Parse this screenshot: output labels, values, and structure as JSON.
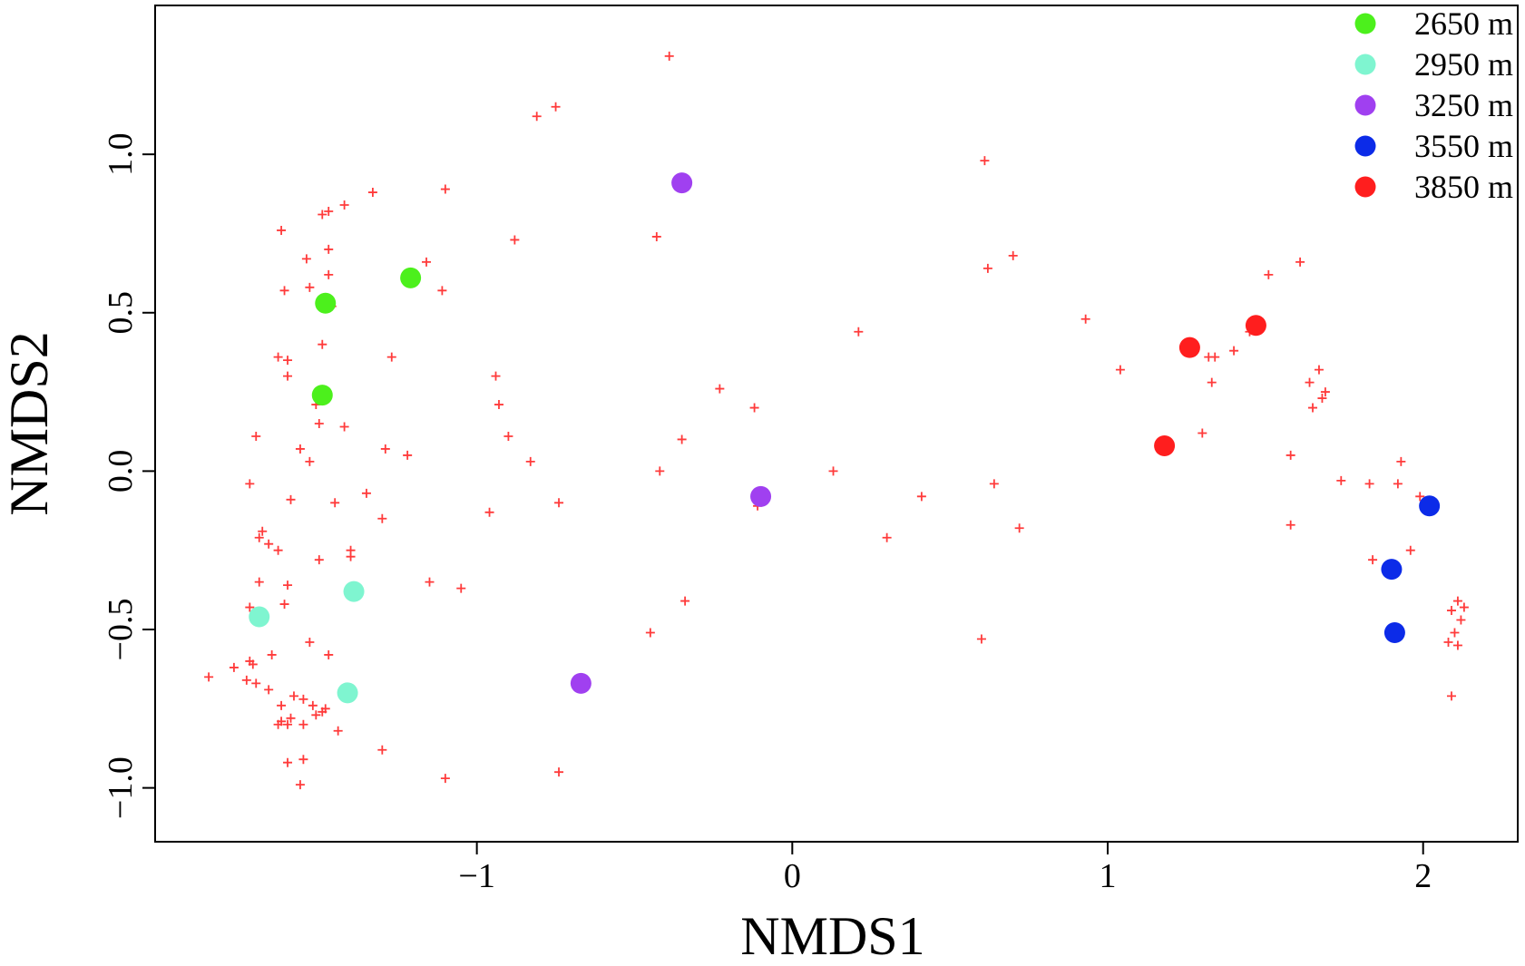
{
  "chart_data": {
    "type": "scatter",
    "title": "",
    "xlabel": "NMDS1",
    "ylabel": "NMDS2",
    "xlim": [
      -2.02,
      2.3
    ],
    "ylim": [
      -1.17,
      1.47
    ],
    "xticks": [
      -1,
      0,
      1,
      2
    ],
    "xtick_labels": [
      "−1",
      "0",
      "1",
      "2"
    ],
    "yticks": [
      -1.0,
      -0.5,
      0.0,
      0.5,
      1.0
    ],
    "ytick_labels": [
      "−1.0",
      "−0.5",
      "0.0",
      "0.5",
      "1.0"
    ],
    "grid": false,
    "legend_position": "top-right",
    "species": {
      "marker": "cross",
      "color": "#ff3b3b",
      "points": [
        [
          -0.39,
          1.31
        ],
        [
          -0.75,
          1.15
        ],
        [
          -0.81,
          1.12
        ],
        [
          -1.33,
          0.88
        ],
        [
          -1.1,
          0.89
        ],
        [
          -1.42,
          0.84
        ],
        [
          -1.49,
          0.81
        ],
        [
          -1.47,
          0.82
        ],
        [
          -1.62,
          0.76
        ],
        [
          -0.88,
          0.73
        ],
        [
          -0.43,
          0.74
        ],
        [
          -1.47,
          0.7
        ],
        [
          -1.54,
          0.67
        ],
        [
          -1.16,
          0.66
        ],
        [
          -1.47,
          0.62
        ],
        [
          -1.53,
          0.58
        ],
        [
          -1.61,
          0.57
        ],
        [
          -1.11,
          0.57
        ],
        [
          -1.46,
          0.52
        ],
        [
          -1.49,
          0.4
        ],
        [
          -1.27,
          0.36
        ],
        [
          -1.63,
          0.36
        ],
        [
          -1.6,
          0.35
        ],
        [
          -1.6,
          0.3
        ],
        [
          -0.94,
          0.3
        ],
        [
          -0.23,
          0.26
        ],
        [
          -0.12,
          0.2
        ],
        [
          -0.93,
          0.21
        ],
        [
          -1.51,
          0.21
        ],
        [
          -1.5,
          0.15
        ],
        [
          -1.42,
          0.14
        ],
        [
          -0.9,
          0.11
        ],
        [
          -1.7,
          0.11
        ],
        [
          -0.35,
          0.1
        ],
        [
          -1.56,
          0.07
        ],
        [
          -1.29,
          0.07
        ],
        [
          -1.22,
          0.05
        ],
        [
          -1.53,
          0.03
        ],
        [
          -0.83,
          0.03
        ],
        [
          -0.42,
          0.0
        ],
        [
          -1.72,
          -0.04
        ],
        [
          -1.35,
          -0.07
        ],
        [
          -1.59,
          -0.09
        ],
        [
          -1.45,
          -0.1
        ],
        [
          -0.74,
          -0.1
        ],
        [
          -0.96,
          -0.13
        ],
        [
          -1.3,
          -0.15
        ],
        [
          -1.68,
          -0.19
        ],
        [
          -1.69,
          -0.21
        ],
        [
          -1.66,
          -0.23
        ],
        [
          -1.63,
          -0.25
        ],
        [
          -1.4,
          -0.25
        ],
        [
          -1.4,
          -0.27
        ],
        [
          -1.5,
          -0.28
        ],
        [
          -1.69,
          -0.35
        ],
        [
          -1.6,
          -0.36
        ],
        [
          -1.15,
          -0.35
        ],
        [
          -1.05,
          -0.37
        ],
        [
          -1.61,
          -0.42
        ],
        [
          -1.72,
          -0.43
        ],
        [
          -0.34,
          -0.41
        ],
        [
          -0.45,
          -0.51
        ],
        [
          -1.53,
          -0.54
        ],
        [
          -1.47,
          -0.58
        ],
        [
          -1.65,
          -0.58
        ],
        [
          -1.72,
          -0.6
        ],
        [
          -1.71,
          -0.61
        ],
        [
          -1.77,
          -0.62
        ],
        [
          -1.85,
          -0.65
        ],
        [
          -1.73,
          -0.66
        ],
        [
          -1.7,
          -0.67
        ],
        [
          -1.66,
          -0.69
        ],
        [
          -1.55,
          -0.72
        ],
        [
          -1.58,
          -0.71
        ],
        [
          -1.62,
          -0.74
        ],
        [
          -1.52,
          -0.74
        ],
        [
          -1.49,
          -0.76
        ],
        [
          -1.48,
          -0.75
        ],
        [
          -1.51,
          -0.77
        ],
        [
          -1.59,
          -0.78
        ],
        [
          -1.62,
          -0.79
        ],
        [
          -1.6,
          -0.8
        ],
        [
          -1.63,
          -0.8
        ],
        [
          -1.55,
          -0.8
        ],
        [
          -1.44,
          -0.82
        ],
        [
          -1.3,
          -0.88
        ],
        [
          -1.6,
          -0.92
        ],
        [
          -1.55,
          -0.91
        ],
        [
          -1.56,
          -0.99
        ],
        [
          -1.1,
          -0.97
        ],
        [
          -0.74,
          -0.95
        ],
        [
          0.61,
          0.98
        ],
        [
          0.7,
          0.68
        ],
        [
          0.62,
          0.64
        ],
        [
          0.93,
          0.48
        ],
        [
          0.21,
          0.44
        ],
        [
          1.04,
          0.32
        ],
        [
          1.45,
          0.44
        ],
        [
          1.4,
          0.38
        ],
        [
          1.32,
          0.36
        ],
        [
          1.34,
          0.36
        ],
        [
          1.33,
          0.28
        ],
        [
          1.61,
          0.66
        ],
        [
          1.51,
          0.62
        ],
        [
          1.67,
          0.32
        ],
        [
          1.64,
          0.28
        ],
        [
          1.69,
          0.25
        ],
        [
          1.68,
          0.23
        ],
        [
          1.65,
          0.2
        ],
        [
          1.3,
          0.12
        ],
        [
          1.58,
          0.05
        ],
        [
          1.93,
          0.03
        ],
        [
          1.74,
          -0.03
        ],
        [
          1.83,
          -0.04
        ],
        [
          1.92,
          -0.04
        ],
        [
          1.99,
          -0.08
        ],
        [
          0.13,
          0.0
        ],
        [
          0.41,
          -0.08
        ],
        [
          0.64,
          -0.04
        ],
        [
          0.72,
          -0.18
        ],
        [
          0.3,
          -0.21
        ],
        [
          1.58,
          -0.17
        ],
        [
          1.96,
          -0.25
        ],
        [
          1.84,
          -0.28
        ],
        [
          0.6,
          -0.53
        ],
        [
          2.09,
          -0.44
        ],
        [
          2.11,
          -0.41
        ],
        [
          2.13,
          -0.43
        ],
        [
          2.12,
          -0.47
        ],
        [
          2.1,
          -0.51
        ],
        [
          2.08,
          -0.54
        ],
        [
          2.11,
          -0.55
        ],
        [
          2.09,
          -0.71
        ],
        [
          -0.11,
          -0.11
        ]
      ]
    },
    "series": [
      {
        "name": "2650 m",
        "color": "#4cf01c",
        "points": [
          [
            -1.48,
            0.53
          ],
          [
            -1.21,
            0.61
          ],
          [
            -1.49,
            0.24
          ]
        ]
      },
      {
        "name": "2950 m",
        "color": "#7ff5d0",
        "points": [
          [
            -1.39,
            -0.38
          ],
          [
            -1.69,
            -0.46
          ],
          [
            -1.41,
            -0.7
          ]
        ]
      },
      {
        "name": "3250 m",
        "color": "#a040f0",
        "points": [
          [
            -0.35,
            0.91
          ],
          [
            -0.1,
            -0.08
          ],
          [
            -0.67,
            -0.67
          ]
        ]
      },
      {
        "name": "3550 m",
        "color": "#0c2be8",
        "points": [
          [
            2.02,
            -0.11
          ],
          [
            1.9,
            -0.31
          ],
          [
            1.91,
            -0.51
          ]
        ]
      },
      {
        "name": "3850 m",
        "color": "#ff1e1e",
        "points": [
          [
            1.47,
            0.46
          ],
          [
            1.26,
            0.39
          ],
          [
            1.18,
            0.08
          ]
        ]
      }
    ]
  }
}
